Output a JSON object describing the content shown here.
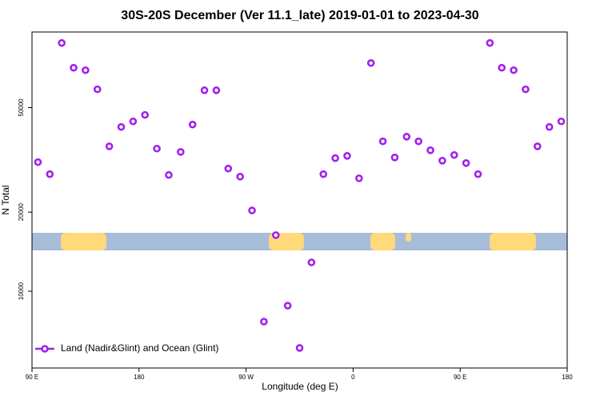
{
  "chart_data": {
    "type": "scatter",
    "title": "30S-20S December (Ver 11.1_late)   2019-01-01 to 2023-04-30",
    "xlabel": "Longitude (deg E)",
    "ylabel": "N Total",
    "log_y": true,
    "xlim": [
      90,
      540
    ],
    "ylim": [
      5100,
      97000
    ],
    "xticks": [
      {
        "value": 90,
        "label": "90 E"
      },
      {
        "value": 180,
        "label": "180"
      },
      {
        "value": 270,
        "label": "90 W"
      },
      {
        "value": 360,
        "label": "0"
      },
      {
        "value": 450,
        "label": "90 E"
      },
      {
        "value": 540,
        "label": "180"
      }
    ],
    "yticks": [
      10000,
      20000,
      50000
    ],
    "legend": "bottom-left",
    "series": [
      {
        "name": "Land (Nadir&Glint) and Ocean (Glint)",
        "color": "#a020f0",
        "x": [
          95,
          105,
          115,
          125,
          135,
          145,
          155,
          165,
          175,
          185,
          195,
          205,
          215,
          225,
          235,
          245,
          255,
          265,
          275,
          285,
          295,
          305,
          315,
          325,
          335,
          345,
          355,
          365,
          375,
          385,
          395,
          405,
          415,
          425,
          435,
          445,
          455,
          465,
          475,
          485,
          495,
          505,
          515,
          525,
          535
        ],
        "values": [
          31000,
          27900,
          88100,
          70900,
          69400,
          58700,
          35600,
          42200,
          44300,
          46900,
          34900,
          27700,
          33900,
          43100,
          58200,
          58200,
          29300,
          27300,
          20300,
          7660,
          16350,
          8810,
          6080,
          12870,
          27900,
          32100,
          32750,
          26900,
          73900,
          37200,
          32300,
          38750,
          37200,
          34400,
          31400,
          33000,
          30750,
          27900,
          88100,
          70900,
          69400,
          58700,
          35600,
          42200,
          44300
        ]
      }
    ]
  }
}
